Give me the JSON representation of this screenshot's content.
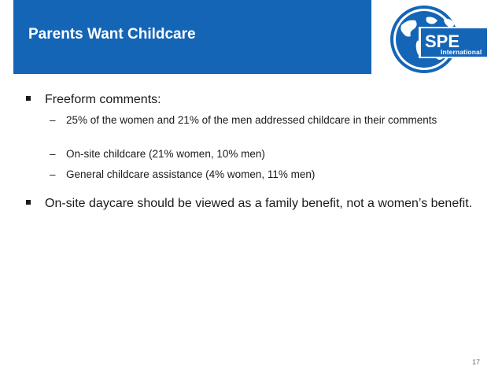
{
  "slide": {
    "title": "Parents Want Childcare",
    "logo": {
      "main_text": "SPE",
      "sub_text": "International",
      "color": "#1565b7"
    },
    "accent_color": "#1565b7",
    "bullets": [
      {
        "text": "Freeform comments:",
        "sub": [
          {
            "text": "25% of the women and 21% of the men addressed childcare in their comments"
          },
          {
            "text": "On-site childcare (21% women, 10% men)"
          },
          {
            "text": "General childcare assistance (4% women, 11% men)"
          }
        ]
      },
      {
        "text": "On-site daycare should be viewed as a family benefit, not a women’s benefit.",
        "sub": []
      }
    ],
    "page_number": "17"
  }
}
